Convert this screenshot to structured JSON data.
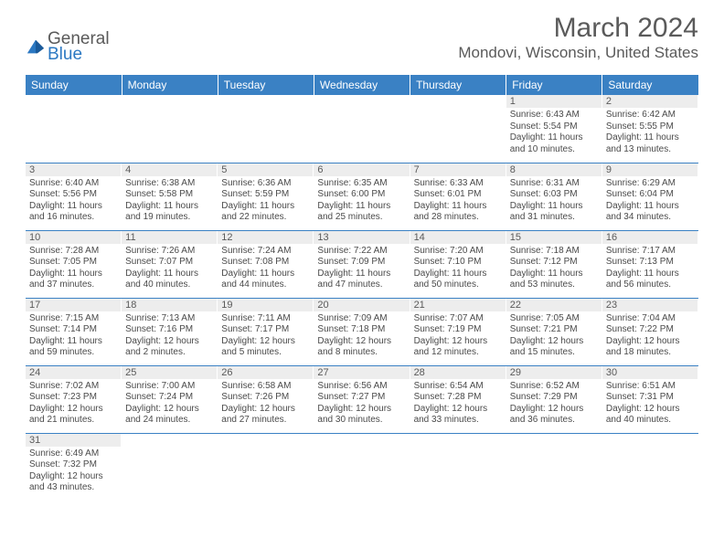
{
  "logo": {
    "text_main": "General",
    "text_accent": "Blue"
  },
  "title": "March 2024",
  "location": "Mondovi, Wisconsin, United States",
  "colors": {
    "header_bg": "#3a81c4",
    "header_fg": "#ffffff",
    "daynum_bg": "#ededed",
    "text": "#5a5a5a",
    "accent": "#2b78c2"
  },
  "day_headers": [
    "Sunday",
    "Monday",
    "Tuesday",
    "Wednesday",
    "Thursday",
    "Friday",
    "Saturday"
  ],
  "weeks": [
    [
      null,
      null,
      null,
      null,
      null,
      {
        "n": "1",
        "sr": "6:43 AM",
        "ss": "5:54 PM",
        "dl": "11 hours and 10 minutes."
      },
      {
        "n": "2",
        "sr": "6:42 AM",
        "ss": "5:55 PM",
        "dl": "11 hours and 13 minutes."
      }
    ],
    [
      {
        "n": "3",
        "sr": "6:40 AM",
        "ss": "5:56 PM",
        "dl": "11 hours and 16 minutes."
      },
      {
        "n": "4",
        "sr": "6:38 AM",
        "ss": "5:58 PM",
        "dl": "11 hours and 19 minutes."
      },
      {
        "n": "5",
        "sr": "6:36 AM",
        "ss": "5:59 PM",
        "dl": "11 hours and 22 minutes."
      },
      {
        "n": "6",
        "sr": "6:35 AM",
        "ss": "6:00 PM",
        "dl": "11 hours and 25 minutes."
      },
      {
        "n": "7",
        "sr": "6:33 AM",
        "ss": "6:01 PM",
        "dl": "11 hours and 28 minutes."
      },
      {
        "n": "8",
        "sr": "6:31 AM",
        "ss": "6:03 PM",
        "dl": "11 hours and 31 minutes."
      },
      {
        "n": "9",
        "sr": "6:29 AM",
        "ss": "6:04 PM",
        "dl": "11 hours and 34 minutes."
      }
    ],
    [
      {
        "n": "10",
        "sr": "7:28 AM",
        "ss": "7:05 PM",
        "dl": "11 hours and 37 minutes."
      },
      {
        "n": "11",
        "sr": "7:26 AM",
        "ss": "7:07 PM",
        "dl": "11 hours and 40 minutes."
      },
      {
        "n": "12",
        "sr": "7:24 AM",
        "ss": "7:08 PM",
        "dl": "11 hours and 44 minutes."
      },
      {
        "n": "13",
        "sr": "7:22 AM",
        "ss": "7:09 PM",
        "dl": "11 hours and 47 minutes."
      },
      {
        "n": "14",
        "sr": "7:20 AM",
        "ss": "7:10 PM",
        "dl": "11 hours and 50 minutes."
      },
      {
        "n": "15",
        "sr": "7:18 AM",
        "ss": "7:12 PM",
        "dl": "11 hours and 53 minutes."
      },
      {
        "n": "16",
        "sr": "7:17 AM",
        "ss": "7:13 PM",
        "dl": "11 hours and 56 minutes."
      }
    ],
    [
      {
        "n": "17",
        "sr": "7:15 AM",
        "ss": "7:14 PM",
        "dl": "11 hours and 59 minutes."
      },
      {
        "n": "18",
        "sr": "7:13 AM",
        "ss": "7:16 PM",
        "dl": "12 hours and 2 minutes."
      },
      {
        "n": "19",
        "sr": "7:11 AM",
        "ss": "7:17 PM",
        "dl": "12 hours and 5 minutes."
      },
      {
        "n": "20",
        "sr": "7:09 AM",
        "ss": "7:18 PM",
        "dl": "12 hours and 8 minutes."
      },
      {
        "n": "21",
        "sr": "7:07 AM",
        "ss": "7:19 PM",
        "dl": "12 hours and 12 minutes."
      },
      {
        "n": "22",
        "sr": "7:05 AM",
        "ss": "7:21 PM",
        "dl": "12 hours and 15 minutes."
      },
      {
        "n": "23",
        "sr": "7:04 AM",
        "ss": "7:22 PM",
        "dl": "12 hours and 18 minutes."
      }
    ],
    [
      {
        "n": "24",
        "sr": "7:02 AM",
        "ss": "7:23 PM",
        "dl": "12 hours and 21 minutes."
      },
      {
        "n": "25",
        "sr": "7:00 AM",
        "ss": "7:24 PM",
        "dl": "12 hours and 24 minutes."
      },
      {
        "n": "26",
        "sr": "6:58 AM",
        "ss": "7:26 PM",
        "dl": "12 hours and 27 minutes."
      },
      {
        "n": "27",
        "sr": "6:56 AM",
        "ss": "7:27 PM",
        "dl": "12 hours and 30 minutes."
      },
      {
        "n": "28",
        "sr": "6:54 AM",
        "ss": "7:28 PM",
        "dl": "12 hours and 33 minutes."
      },
      {
        "n": "29",
        "sr": "6:52 AM",
        "ss": "7:29 PM",
        "dl": "12 hours and 36 minutes."
      },
      {
        "n": "30",
        "sr": "6:51 AM",
        "ss": "7:31 PM",
        "dl": "12 hours and 40 minutes."
      }
    ],
    [
      {
        "n": "31",
        "sr": "6:49 AM",
        "ss": "7:32 PM",
        "dl": "12 hours and 43 minutes."
      },
      null,
      null,
      null,
      null,
      null,
      null
    ]
  ],
  "labels": {
    "sunrise": "Sunrise:",
    "sunset": "Sunset:",
    "daylight": "Daylight:"
  }
}
